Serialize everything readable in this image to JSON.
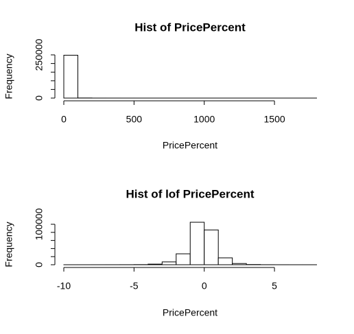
{
  "chart_data": [
    {
      "type": "histogram",
      "title": "Hist of PricePercent",
      "xlabel": "PricePercent",
      "ylabel": "Frequency",
      "bins": [
        0,
        100,
        200,
        300,
        400,
        500,
        600,
        700,
        800,
        900,
        1000,
        1100,
        1200,
        1300,
        1400,
        1500,
        1600,
        1700,
        1800
      ],
      "counts": [
        248000,
        600,
        100,
        50,
        30,
        20,
        10,
        10,
        5,
        5,
        3,
        3,
        2,
        2,
        1,
        1,
        1,
        1
      ],
      "color": "#ffffff",
      "xlim": [
        0,
        1800
      ],
      "xticks": [
        0,
        500,
        1000,
        1500
      ],
      "ylim": [
        0,
        250000
      ],
      "yticks": [
        0,
        250000
      ],
      "yminor_ticks": [
        50000,
        100000,
        150000,
        200000
      ]
    },
    {
      "type": "histogram",
      "title": "Hist of lof PricePercent",
      "xlabel": "PricePercent",
      "ylabel": "Frequency",
      "bins": [
        -10,
        -9,
        -8,
        -7,
        -6,
        -5,
        -4,
        -3,
        -2,
        -1,
        0,
        1,
        2,
        3,
        4,
        5,
        6,
        7,
        8
      ],
      "counts": [
        5,
        10,
        20,
        50,
        100,
        300,
        1500,
        7000,
        27000,
        105000,
        86000,
        17000,
        3000,
        500,
        100,
        30,
        10,
        5
      ],
      "color": "#ffffff",
      "xlim": [
        -10,
        8
      ],
      "xticks": [
        -10,
        -5,
        0,
        5
      ],
      "ylim": [
        0,
        100000
      ],
      "yticks": [
        0,
        100000
      ],
      "yminor_ticks": [
        20000,
        40000,
        60000,
        80000
      ]
    }
  ]
}
